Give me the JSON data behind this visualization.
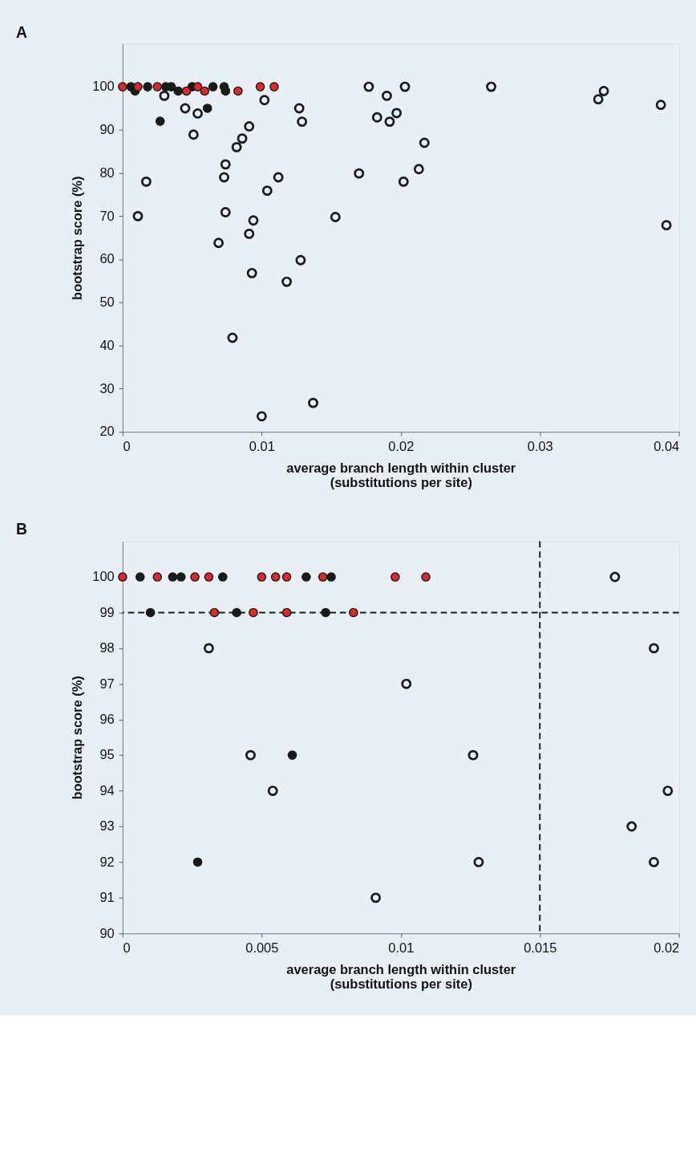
{
  "chart_data": [
    {
      "type": "scatter",
      "title": "A",
      "xlabel": "average branch length within cluster\n(substitutions per site)",
      "ylabel": "bootstrap score (%)",
      "xlim": [
        0,
        0.04
      ],
      "ylim": [
        20,
        110
      ],
      "xticks": [
        0,
        0.01,
        0.02,
        0.03,
        0.04
      ],
      "yticks": [
        20,
        30,
        40,
        50,
        60,
        70,
        80,
        90,
        100
      ],
      "grid": false,
      "legend": false,
      "marker": "circle",
      "series": [
        {
          "color": "#1a1a1a",
          "x": [
            0.003,
            0.0045,
            0.0054,
            0.0102,
            0.0127,
            0.0129,
            0.0091,
            0.0051,
            0.0086,
            0.0082,
            0.0074,
            0.0073,
            0.0112,
            0.0104,
            0.0017,
            0.0011,
            0.0074,
            0.0094,
            0.0153,
            0.0091,
            0.0069,
            0.0128,
            0.0093,
            0.0118,
            0.0079,
            0.0137,
            0.01,
            0.0177,
            0.0203,
            0.019,
            0.0183,
            0.0197,
            0.0192,
            0.0217,
            0.017,
            0.0213,
            0.0202,
            0.0265,
            0.0346,
            0.0342,
            0.0387,
            0.0391
          ],
          "values": [
            97.9,
            95.0,
            93.8,
            96.9,
            95.0,
            91.9,
            90.8,
            88.9,
            88.0,
            86.0,
            82.0,
            79.0,
            79.0,
            75.9,
            78.0,
            70.0,
            70.9,
            69.0,
            69.8,
            65.9,
            63.8,
            59.8,
            56.8,
            54.8,
            41.8,
            26.7,
            23.6,
            100,
            100,
            97.9,
            92.9,
            93.9,
            91.9,
            87.0,
            79.9,
            80.9,
            78.0,
            100,
            99.0,
            97.1,
            95.8,
            67.9
          ]
        },
        {
          "color": "#1a1a1a",
          "x": [
            0.0006,
            0.0009,
            0.0018,
            0.0031,
            0.0035,
            0.004,
            0.005,
            0.0065,
            0.0073,
            0.0074,
            0.0027,
            0.0061
          ],
          "values": [
            100,
            99,
            100,
            100,
            100,
            99,
            100,
            100,
            100,
            99,
            92.0,
            95.0
          ]
        },
        {
          "color": "#e02828",
          "x": [
            0,
            0.0011,
            0.0025,
            0.0046,
            0.0054,
            0.0059,
            0.0083,
            0.0099,
            0.0109
          ],
          "values": [
            100,
            100,
            100,
            99,
            100,
            99,
            99,
            100,
            100
          ]
        }
      ]
    },
    {
      "type": "scatter",
      "title": "B",
      "xlabel": "average branch length within cluster\n(substitutions per site)",
      "ylabel": "bootstrap score (%)",
      "xlim": [
        0,
        0.02
      ],
      "ylim": [
        90,
        101
      ],
      "xticks": [
        0,
        0.005,
        0.01,
        0.015,
        0.02
      ],
      "yticks": [
        90,
        91,
        92,
        93,
        94,
        95,
        96,
        97,
        98,
        99,
        100
      ],
      "grid": false,
      "legend": false,
      "marker": "circle",
      "ref_lines": [
        {
          "axis": "y",
          "value": 99,
          "color": "#1a1a1a",
          "line_style": "dashed"
        },
        {
          "axis": "x",
          "value": 0.015,
          "color": "#1a1a1a",
          "line_style": "dashed"
        }
      ],
      "series": [
        {
          "color": "#1a1a1a",
          "x": [
            0.0031,
            0.0102,
            0.0046,
            0.0054,
            0.0091,
            0.0177,
            0.0191,
            0.0126,
            0.0196,
            0.0183,
            0.0128,
            0.0191
          ],
          "values": [
            98,
            97,
            95,
            94,
            91,
            100,
            98,
            95,
            94,
            93,
            92,
            92
          ]
        },
        {
          "color": "#1a1a1a",
          "x": [
            0.00063,
            0.0018,
            0.0021,
            0.0036,
            0.0066,
            0.0075,
            0.001,
            0.0041,
            0.0073,
            0.0061,
            0.0027
          ],
          "values": [
            100,
            100,
            100,
            100,
            100,
            100,
            99,
            99,
            99,
            95,
            92
          ]
        },
        {
          "color": "#e02828",
          "x": [
            0,
            0.00125,
            0.0026,
            0.0031,
            0.005,
            0.0055,
            0.0059,
            0.0072,
            0.0098,
            0.0109,
            0.0033,
            0.0047,
            0.0059,
            0.0083
          ],
          "values": [
            100,
            100,
            100,
            100,
            100,
            100,
            100,
            100,
            100,
            100,
            99,
            99,
            99,
            99
          ]
        }
      ]
    }
  ]
}
